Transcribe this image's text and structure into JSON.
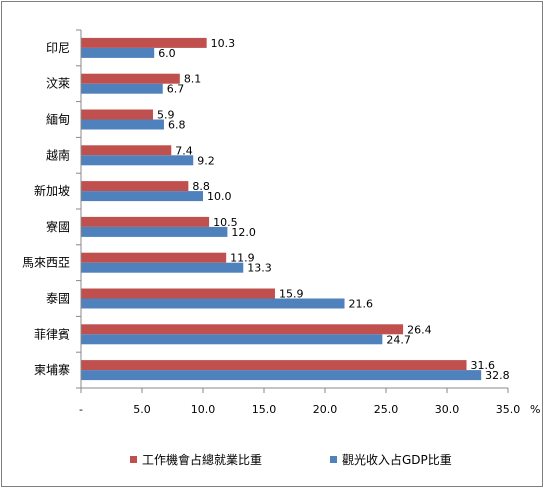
{
  "chart_data": {
    "type": "bar",
    "orientation": "horizontal",
    "categories": [
      "印尼",
      "汶萊",
      "緬甸",
      "越南",
      "新加坡",
      "寮國",
      "馬來西亞",
      "泰國",
      "菲律賓",
      "柬埔寨"
    ],
    "series": [
      {
        "name": "工作機會占總就業比重",
        "color": "#c0504d",
        "values": [
          10.3,
          8.1,
          5.9,
          7.4,
          8.8,
          10.5,
          11.9,
          15.9,
          26.4,
          31.6
        ]
      },
      {
        "name": "觀光收入占GDP比重",
        "color": "#4f81bd",
        "values": [
          6.0,
          6.7,
          6.8,
          9.2,
          10.0,
          12.0,
          13.3,
          21.6,
          24.7,
          32.8
        ]
      }
    ],
    "xlim": [
      0,
      35
    ],
    "xticks": [
      0,
      5,
      10,
      15,
      20,
      25,
      30,
      35
    ],
    "xtick_labels": [
      "-",
      "5.0",
      "10.0",
      "15.0",
      "20.0",
      "25.0",
      "30.0",
      "35.0"
    ],
    "x_unit": "%",
    "legend_position": "bottom",
    "grid": false
  }
}
